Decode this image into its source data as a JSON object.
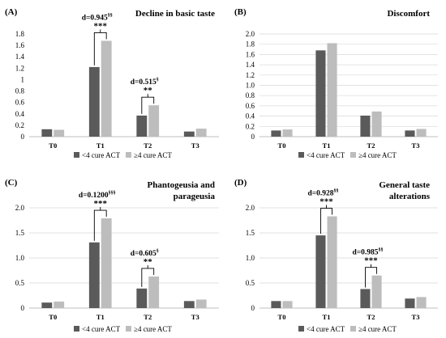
{
  "colors": {
    "series1": "#5a5a5a",
    "series2": "#bdbdbd",
    "grid": "#d9d9d9",
    "axis": "#bfbfbf",
    "bracket": "#000000"
  },
  "chart_data": [
    {
      "type": "bar",
      "panel": "(A)",
      "title": [
        "Decline in basic taste"
      ],
      "categories": [
        "T0",
        "T1",
        "T2",
        "T3"
      ],
      "ylim": [
        0,
        1.8
      ],
      "yticks": [
        0,
        0.2,
        0.4,
        0.6,
        0.8,
        1.0,
        1.2,
        1.4,
        1.6,
        1.8
      ],
      "ytick_labels": [
        "0",
        "0.2",
        "0.4",
        "0.6",
        "0.8",
        "1",
        "1.2",
        "1.4",
        "1.6",
        "1.8"
      ],
      "grid": false,
      "series": [
        {
          "name": "<4 cure ACT",
          "values": [
            0.13,
            1.22,
            0.37,
            0.09
          ]
        },
        {
          "name": "≥4 cure ACT",
          "values": [
            0.12,
            1.68,
            0.55,
            0.14
          ]
        }
      ],
      "annotations": [
        {
          "category": "T1",
          "d": "d=0.945",
          "sup": "§§",
          "stars": "***"
        },
        {
          "category": "T2",
          "d": "d=0.515",
          "sup": "§",
          "stars": "**"
        }
      ],
      "legend_position": "bottom"
    },
    {
      "type": "bar",
      "panel": "(B)",
      "title": [
        "Discomfort"
      ],
      "categories": [
        "T0",
        "T1",
        "T2",
        "T3"
      ],
      "ylim": [
        0,
        2.0
      ],
      "yticks": [
        0,
        0.2,
        0.4,
        0.6,
        0.8,
        1.0,
        1.2,
        1.4,
        1.6,
        1.8,
        2.0
      ],
      "ytick_labels": [
        "0",
        "0.2",
        "0.4",
        "0.6",
        "0.8",
        "1.0",
        "1.2",
        "1.4",
        "1.6",
        "1.8",
        "2.0"
      ],
      "grid": true,
      "series": [
        {
          "name": "<4 cure ACT",
          "values": [
            0.12,
            1.68,
            0.41,
            0.12
          ]
        },
        {
          "name": "≥4 cure ACT",
          "values": [
            0.14,
            1.82,
            0.49,
            0.15
          ]
        }
      ],
      "annotations": [],
      "legend_position": "bottom"
    },
    {
      "type": "bar",
      "panel": "(C)",
      "title": [
        "Phantogeusia and",
        "parageusia"
      ],
      "categories": [
        "T0",
        "T1",
        "T2",
        "T3"
      ],
      "ylim": [
        0,
        2.0
      ],
      "yticks": [
        0,
        0.5,
        1.0,
        1.5,
        2.0
      ],
      "ytick_labels": [
        "0",
        "0.5",
        "1.0",
        "1.5",
        "2.0"
      ],
      "grid": true,
      "series": [
        {
          "name": "<4 cure ACT",
          "values": [
            0.11,
            1.31,
            0.39,
            0.14
          ]
        },
        {
          "name": "≥4 cure ACT",
          "values": [
            0.13,
            1.79,
            0.63,
            0.17
          ]
        }
      ],
      "annotations": [
        {
          "category": "T1",
          "d": "d=0.1200",
          "sup": "§§§",
          "stars": "***"
        },
        {
          "category": "T2",
          "d": "d=0.605",
          "sup": "§",
          "stars": "**"
        }
      ],
      "legend_position": "bottom"
    },
    {
      "type": "bar",
      "panel": "(D)",
      "title": [
        "General taste",
        "alterations"
      ],
      "categories": [
        "T0",
        "T1",
        "T2",
        "T3"
      ],
      "ylim": [
        0,
        2.0
      ],
      "yticks": [
        0,
        0.5,
        1.0,
        1.5,
        2.0
      ],
      "ytick_labels": [
        "0",
        "0.5",
        "1.0",
        "1.5",
        "2.0"
      ],
      "grid": true,
      "series": [
        {
          "name": "<4 cure ACT",
          "values": [
            0.14,
            1.45,
            0.38,
            0.19
          ]
        },
        {
          "name": "≥4 cure ACT",
          "values": [
            0.14,
            1.83,
            0.65,
            0.22
          ]
        }
      ],
      "annotations": [
        {
          "category": "T1",
          "d": "d=0.928",
          "sup": "§§",
          "stars": "***"
        },
        {
          "category": "T2",
          "d": "d=0.985",
          "sup": "§§",
          "stars": "***"
        }
      ],
      "legend_position": "bottom"
    }
  ]
}
